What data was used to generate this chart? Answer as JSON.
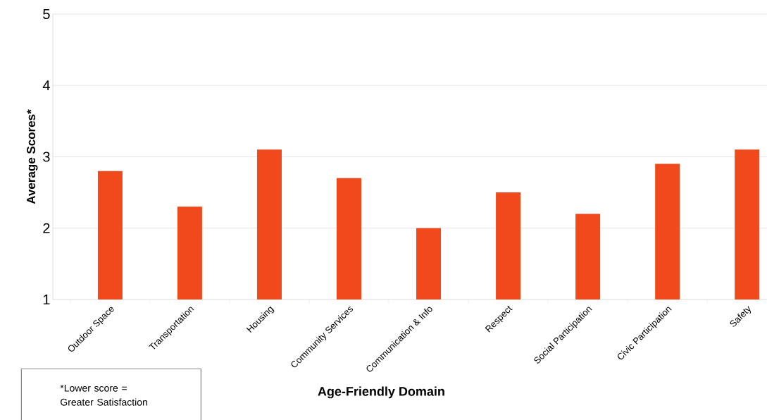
{
  "chart_data": {
    "type": "bar",
    "xlabel": "Age-Friendly Domain",
    "ylabel": "Average Scores*",
    "categories": [
      "Outdoor Space",
      "Transportation",
      "Housing",
      "Community Services",
      "Communication & Info",
      "Respect",
      "Social Participation",
      "Civic Participation",
      "Safety"
    ],
    "values": [
      2.8,
      2.3,
      3.1,
      2.7,
      2.0,
      2.5,
      2.2,
      2.9,
      3.1
    ],
    "color": "#f04a1c",
    "ylim": [
      1,
      5
    ],
    "yticks": [
      1,
      2,
      3,
      4,
      5
    ],
    "grid": "y",
    "annotations": [
      "*Lower score = Greater Satisfaction"
    ]
  }
}
